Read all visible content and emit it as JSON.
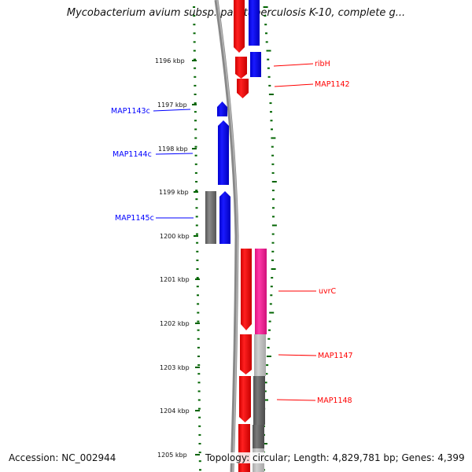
{
  "title": "Mycobacterium avium subsp. paratuberculosis K-10, complete g...",
  "accession_text": "Accession: NC_002944",
  "stats_text": "Topology: circular; Length: 4,829,781 bp; Genes: 4,399",
  "ruler": {
    "unit": "kbp",
    "ticks": [
      "1196 kbp",
      "1197 kbp",
      "1198 kbp",
      "1199 kbp",
      "1200 kbp",
      "1201 kbp",
      "1202 kbp",
      "1203 kbp",
      "1204 kbp",
      "1205 kbp"
    ]
  },
  "colors": {
    "forward": "#ff0000",
    "reverse": "#0000ff",
    "gray": "#777777",
    "magenta": "#ff1493",
    "light_gray": "#bbbbbb",
    "dark_gray": "#666666",
    "tick": "#006400"
  },
  "genes": [
    {
      "label": "ribH",
      "strand": "forward"
    },
    {
      "label": "MAP1142",
      "strand": "forward"
    },
    {
      "label": "MAP1143c",
      "strand": "reverse"
    },
    {
      "label": "MAP1144c",
      "strand": "reverse"
    },
    {
      "label": "MAP1145c",
      "strand": "reverse"
    },
    {
      "label": "uvrC",
      "strand": "forward"
    },
    {
      "label": "MAP1147",
      "strand": "forward"
    },
    {
      "label": "MAP1148",
      "strand": "forward"
    }
  ]
}
